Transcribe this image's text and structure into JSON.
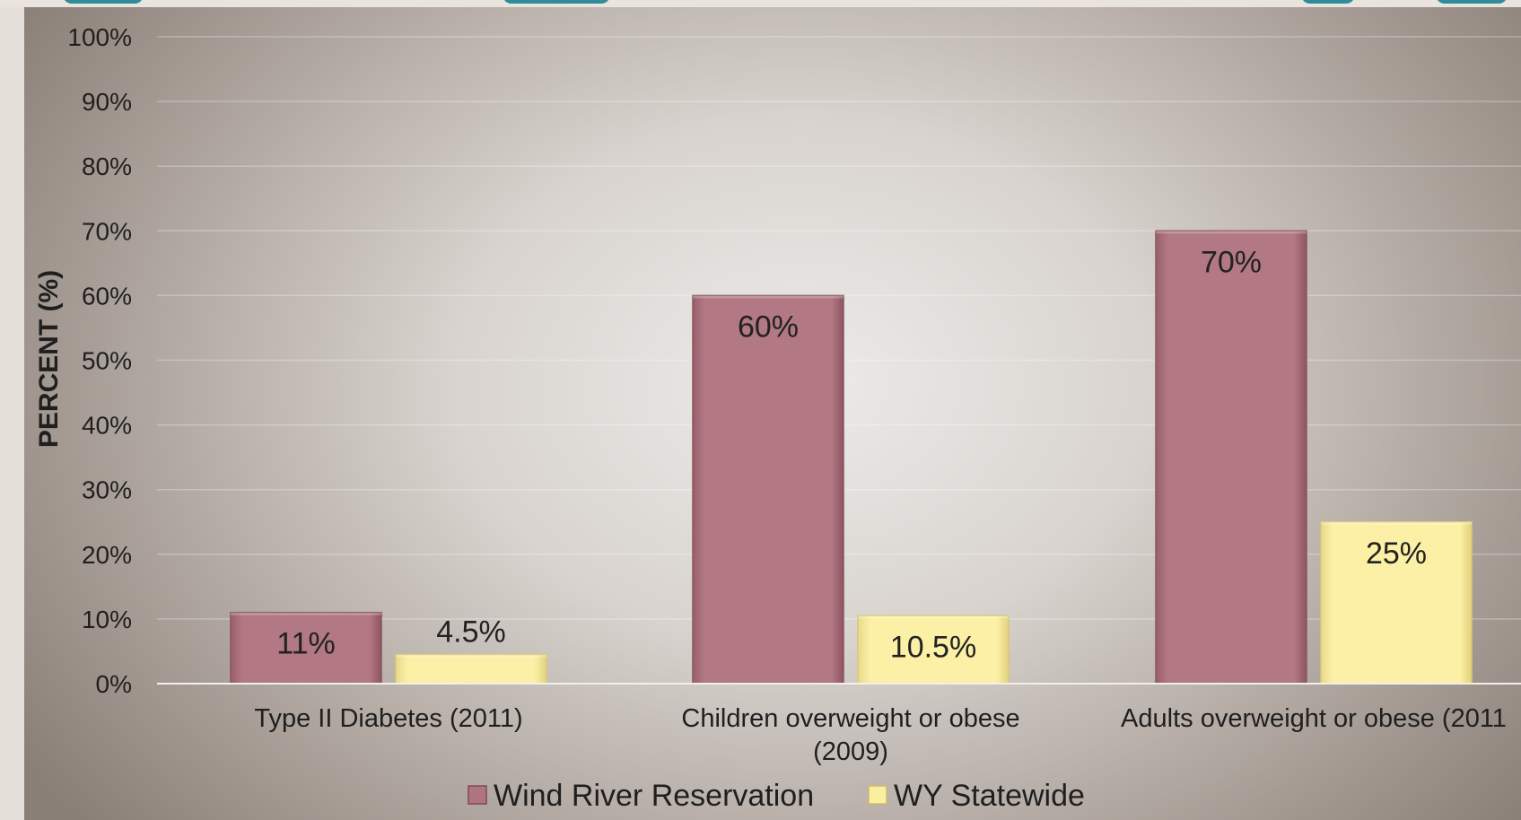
{
  "chart_data": {
    "type": "bar",
    "title": "",
    "xlabel": "",
    "ylabel": "PERCENT (%)",
    "ylim": [
      0,
      100
    ],
    "yticks": [
      "0%",
      "10%",
      "20%",
      "30%",
      "40%",
      "50%",
      "60%",
      "70%",
      "80%",
      "90%",
      "100%"
    ],
    "grid": true,
    "legend_position": "bottom",
    "categories": [
      [
        "Type II Diabetes (2011)"
      ],
      [
        "Children overweight or obese",
        "(2009)"
      ],
      [
        "Adults overweight or obese (2011"
      ]
    ],
    "series": [
      {
        "name": "Wind River Reservation",
        "color": "#b0747e",
        "values": [
          11,
          60,
          70
        ],
        "labels": [
          "11%",
          "60%",
          "70%"
        ]
      },
      {
        "name": "WY Statewide",
        "color": "#fbeea0",
        "values": [
          4.5,
          10.5,
          25
        ],
        "labels": [
          "4.5%",
          "10.5%",
          "25%"
        ]
      }
    ]
  }
}
